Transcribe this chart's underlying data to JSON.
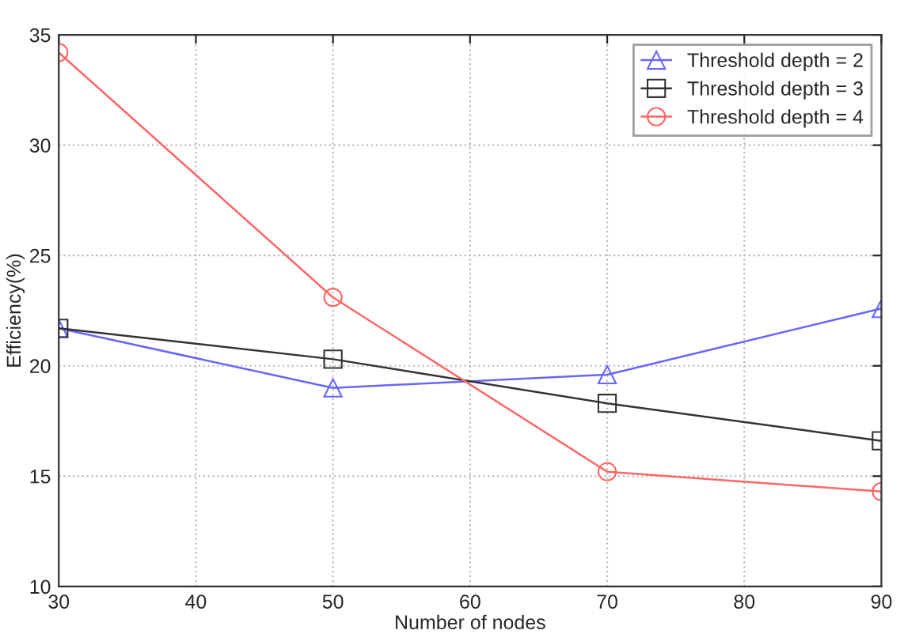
{
  "chart_data": {
    "type": "line",
    "xlabel": "Number of nodes",
    "ylabel": "Efficiency(%)",
    "x": [
      30,
      50,
      70,
      90
    ],
    "series": [
      {
        "name": "Threshold depth = 2",
        "color": "#6666ff",
        "marker": "triangle",
        "values": [
          21.7,
          19.0,
          19.6,
          22.6
        ]
      },
      {
        "name": "Threshold depth = 3",
        "color": "#333333",
        "marker": "square",
        "values": [
          21.7,
          20.3,
          18.3,
          16.6
        ]
      },
      {
        "name": "Threshold depth = 4",
        "color": "#ff6666",
        "marker": "circle",
        "values": [
          34.2,
          23.1,
          15.2,
          14.3
        ]
      }
    ],
    "xlim": [
      30,
      90
    ],
    "xticks": [
      30,
      40,
      50,
      60,
      70,
      80,
      90
    ],
    "ylim": [
      10,
      35
    ],
    "yticks": [
      10,
      15,
      20,
      25,
      30,
      35
    ],
    "grid": true,
    "legend": "top right",
    "line_style": "solid"
  }
}
